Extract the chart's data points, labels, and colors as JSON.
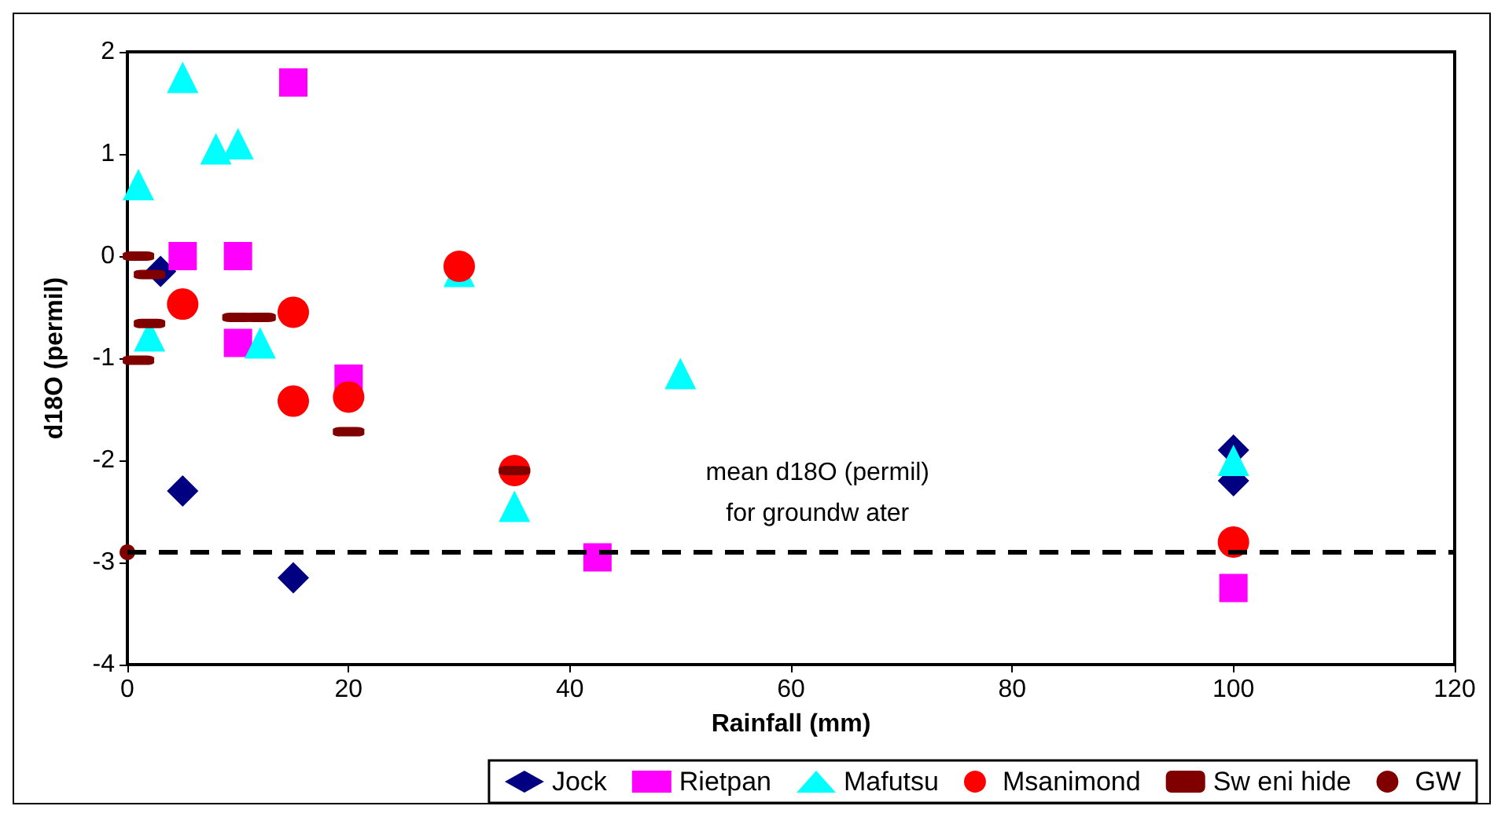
{
  "chart_data": {
    "type": "scatter",
    "xlabel": "Rainfall (mm)",
    "ylabel": "d18O (permil)",
    "xlim": [
      0,
      120
    ],
    "xticks": [
      0,
      20,
      40,
      60,
      80,
      100,
      120
    ],
    "ylim": [
      -4,
      2
    ],
    "yticks": [
      -4,
      -3,
      -2,
      -1,
      0,
      1,
      2
    ],
    "grid": false,
    "legend": "bottom",
    "series": [
      {
        "name": "Jock",
        "color": "#000080",
        "marker": "diamond",
        "x": [
          3,
          5,
          15,
          100,
          100
        ],
        "values": [
          -0.15,
          -2.3,
          -3.15,
          -1.9,
          -2.2
        ]
      },
      {
        "name": "Rietpan",
        "color": "#ff00ff",
        "marker": "square",
        "x": [
          5,
          10,
          15,
          10,
          20,
          42.5,
          100
        ],
        "values": [
          0,
          0,
          1.7,
          -0.85,
          -1.2,
          -2.95,
          -3.25
        ]
      },
      {
        "name": "Mafutsu",
        "color": "#00ffff",
        "marker": "triangle",
        "x": [
          1,
          5,
          8,
          10,
          2,
          12,
          30,
          35,
          50,
          100
        ],
        "values": [
          0.7,
          1.75,
          1.05,
          1.1,
          -0.78,
          -0.85,
          -0.15,
          -2.45,
          -1.15,
          -2.0
        ]
      },
      {
        "name": "Msanimond",
        "color": "#ff0000",
        "marker": "circle",
        "x": [
          5,
          15,
          15,
          20,
          30,
          35,
          100
        ],
        "values": [
          -0.47,
          -0.55,
          -1.42,
          -1.38,
          -0.1,
          -2.1,
          -2.8
        ]
      },
      {
        "name": "Sw eni hide",
        "color": "#800000",
        "x": [
          1,
          2,
          2,
          1,
          10,
          12,
          20,
          35
        ],
        "values": [
          0,
          -0.18,
          -0.66,
          -1.02,
          -0.6,
          -0.6,
          -1.72,
          -2.1
        ]
      },
      {
        "name": "GW",
        "color": "#800000",
        "marker": "small-circle",
        "x": [
          0
        ],
        "values": [
          -2.9
        ]
      }
    ],
    "ref_lines": [
      {
        "axis": "y",
        "value": -2.9,
        "color": "#000000",
        "line_style": "dashed"
      }
    ],
    "annotations": [
      "mean d18O (permil)\nfor groundw ater"
    ]
  }
}
